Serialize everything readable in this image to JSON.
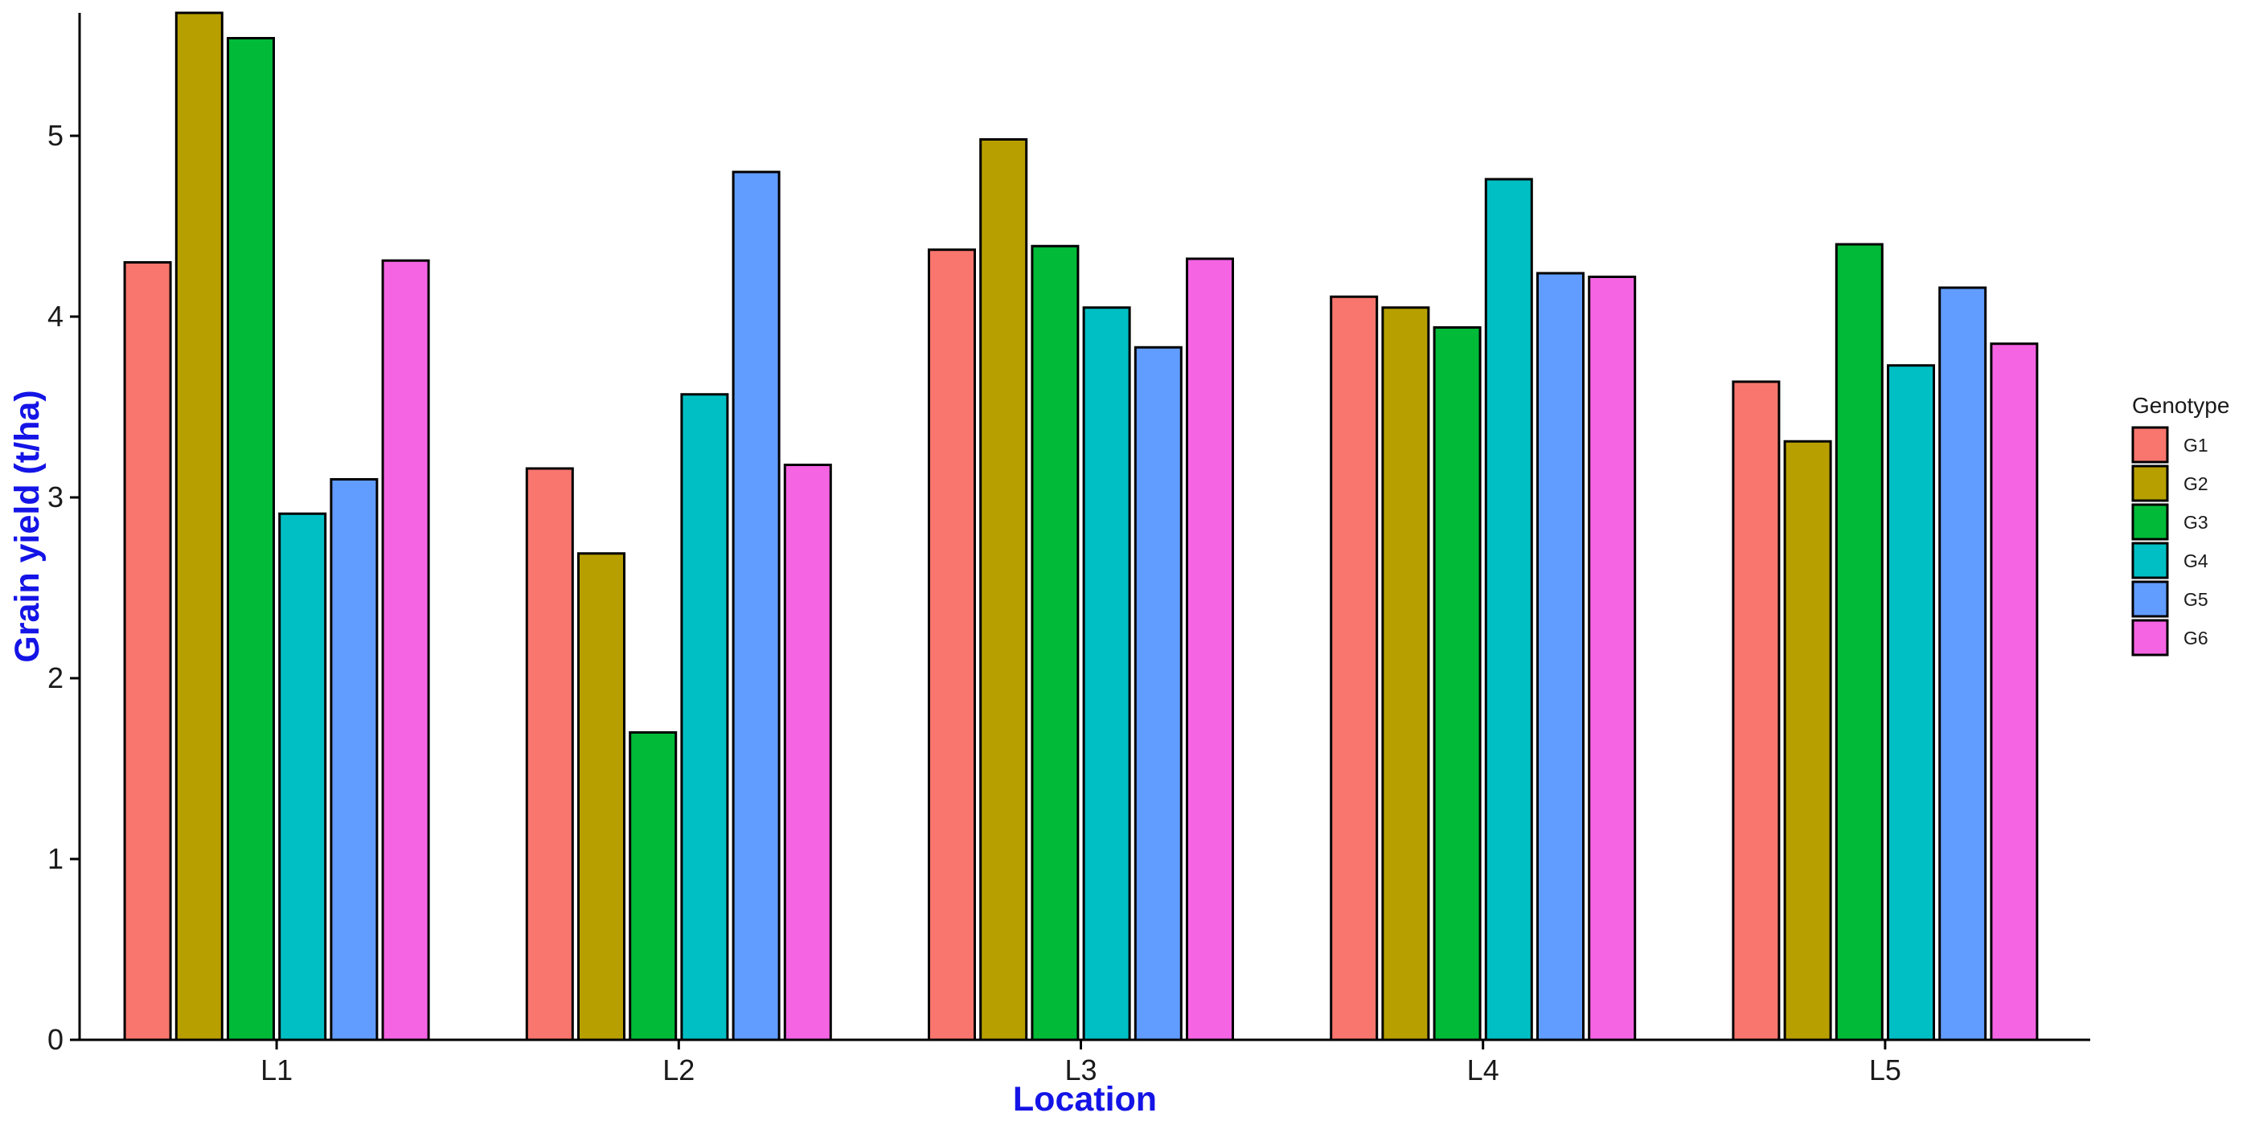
{
  "chart_data": {
    "type": "bar",
    "title": "",
    "xlabel": "Location",
    "ylabel": "Grain yield (t/ha)",
    "categories": [
      "L1",
      "L2",
      "L3",
      "L4",
      "L5"
    ],
    "ylim": [
      0,
      5.68
    ],
    "yticks": [
      0,
      1,
      2,
      3,
      4,
      5
    ],
    "grid": false,
    "legend": {
      "title": "Genotype",
      "placement": "right"
    },
    "series": [
      {
        "name": "G1",
        "color": "#F8766D",
        "values": [
          4.3,
          3.16,
          4.37,
          4.11,
          3.64
        ]
      },
      {
        "name": "G2",
        "color": "#B79F00",
        "values": [
          5.68,
          2.69,
          4.98,
          4.05,
          3.31
        ]
      },
      {
        "name": "G3",
        "color": "#00BA38",
        "values": [
          5.54,
          1.7,
          4.39,
          3.94,
          4.4
        ]
      },
      {
        "name": "G4",
        "color": "#00BFC4",
        "values": [
          2.91,
          3.57,
          4.05,
          4.76,
          3.73
        ]
      },
      {
        "name": "G5",
        "color": "#619CFF",
        "values": [
          3.1,
          4.8,
          3.83,
          4.24,
          4.16
        ]
      },
      {
        "name": "G6",
        "color": "#F564E3",
        "values": [
          4.31,
          3.18,
          4.32,
          4.22,
          3.85
        ]
      }
    ]
  }
}
